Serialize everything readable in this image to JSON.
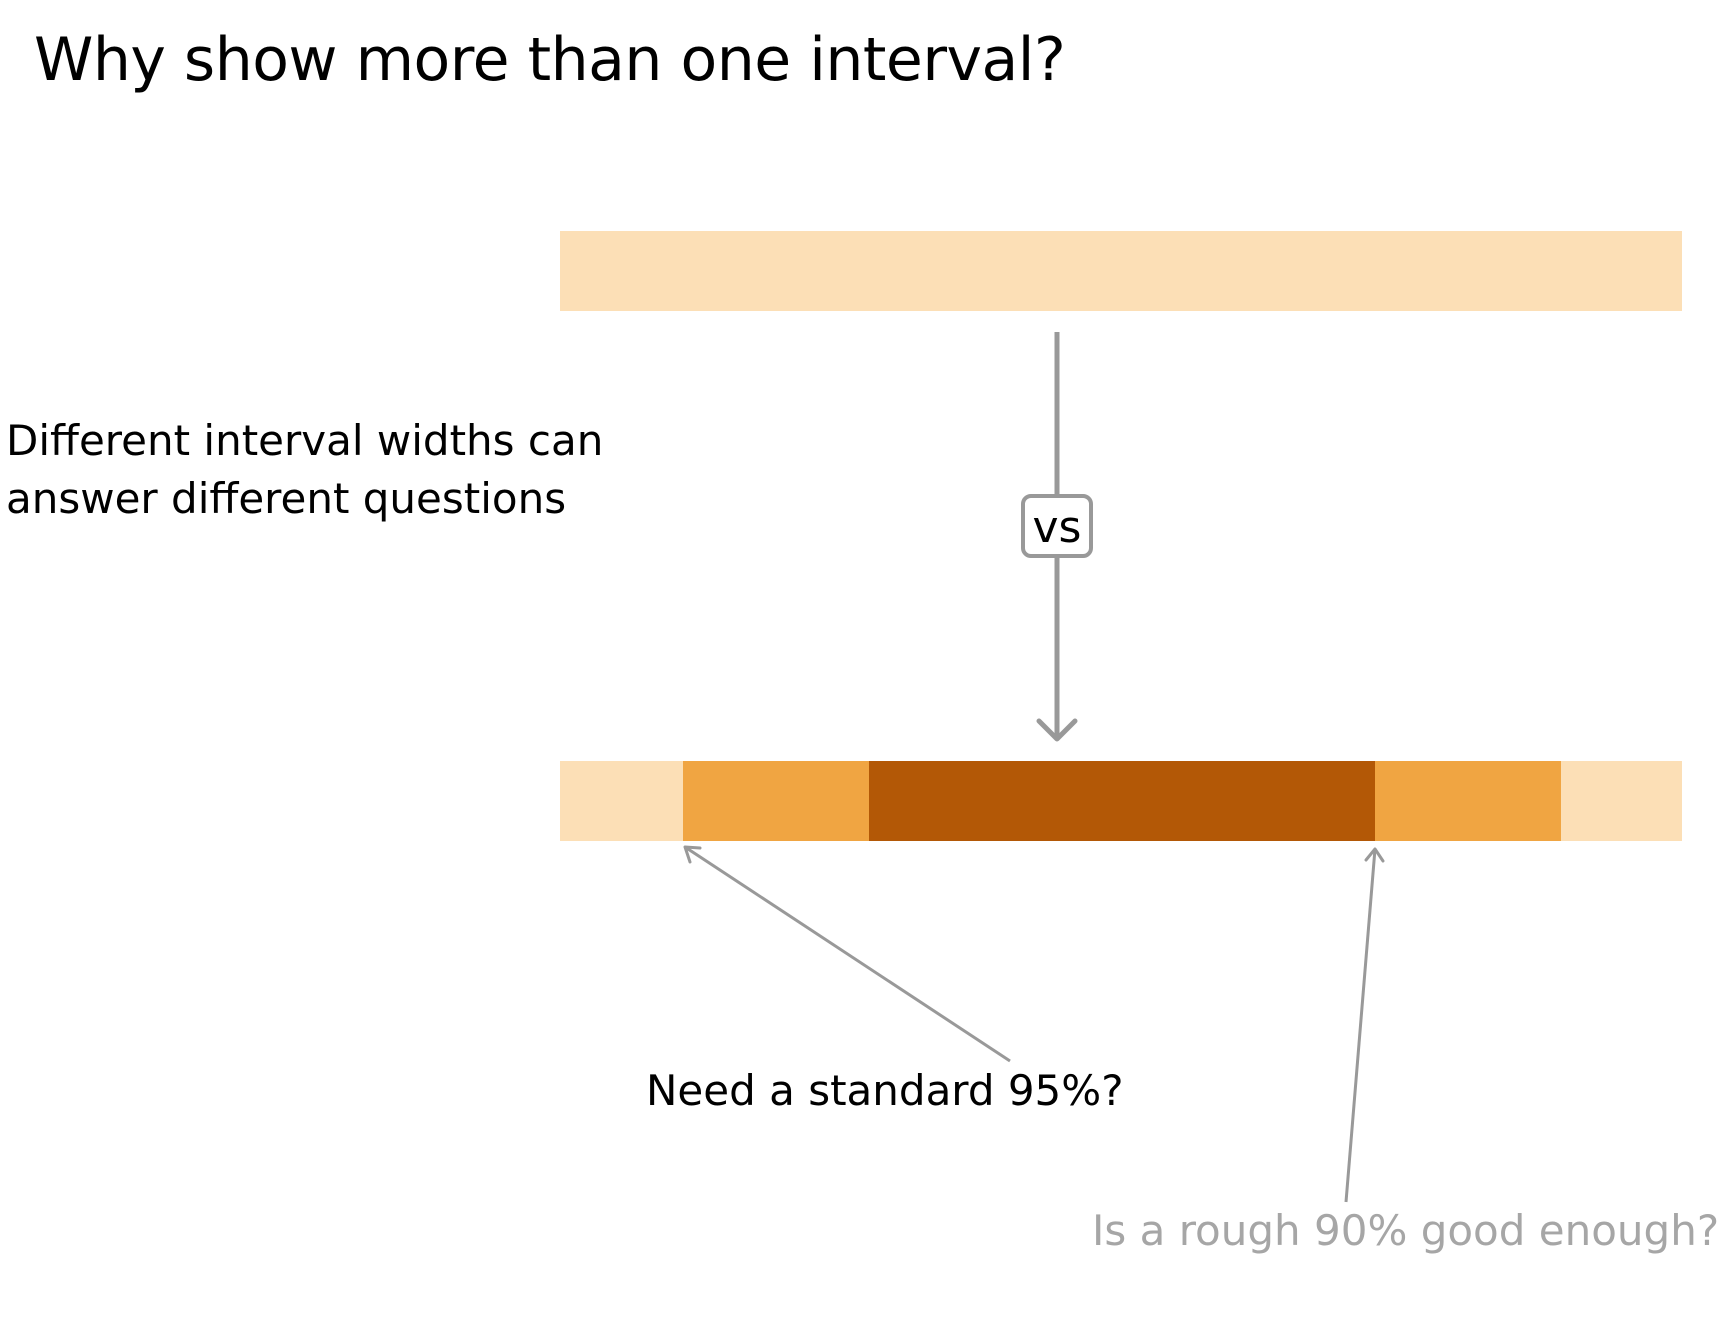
{
  "title": "Why show more than one interval?",
  "side_text": {
    "line1": "Different interval widths can",
    "line2": "answer different questions"
  },
  "vs_label": "vs",
  "callouts": {
    "standard_95": "Need a standard 95%?",
    "rough_90": "Is a rough 90% good enough?"
  },
  "colors": {
    "light_band": "#fcdfb6",
    "medium_band": "#f0a542",
    "dark_band": "#b35806",
    "arrow_gray": "#999999",
    "muted_text": "#a6a6a6"
  }
}
